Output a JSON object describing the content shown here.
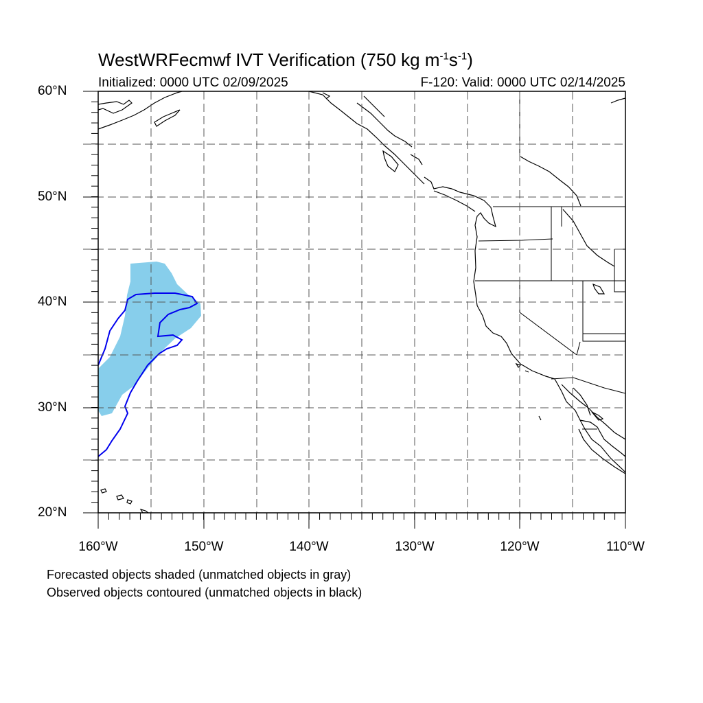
{
  "header": {
    "title_main": "WestWRFecmwf IVT Verification (750 kg m",
    "title_exp1": "-1",
    "title_mid": "s",
    "title_exp2": "-1",
    "title_end": ")",
    "initialized": "Initialized: 0000 UTC 02/09/2025",
    "valid": "F-120: Valid: 0000 UTC 02/14/2025"
  },
  "axes": {
    "lat_labels": [
      "60°N",
      "50°N",
      "40°N",
      "30°N",
      "20°N"
    ],
    "lon_labels": [
      "160°W",
      "150°W",
      "140°W",
      "130°W",
      "120°W",
      "110°W"
    ],
    "lat_range": [
      20,
      60
    ],
    "lon_range": [
      -160,
      -110
    ],
    "grid": "dashed, every 5 degrees"
  },
  "legend": {
    "forecast_note": "Forecasted objects shaded (unmatched objects in gray)",
    "observed_note": "Observed objects contoured (unmatched objects in black)"
  },
  "colors": {
    "forecast_fill": "#87ceeb",
    "observed_contour": "#0000ee",
    "coastline": "#000000",
    "grid": "#555555"
  }
}
